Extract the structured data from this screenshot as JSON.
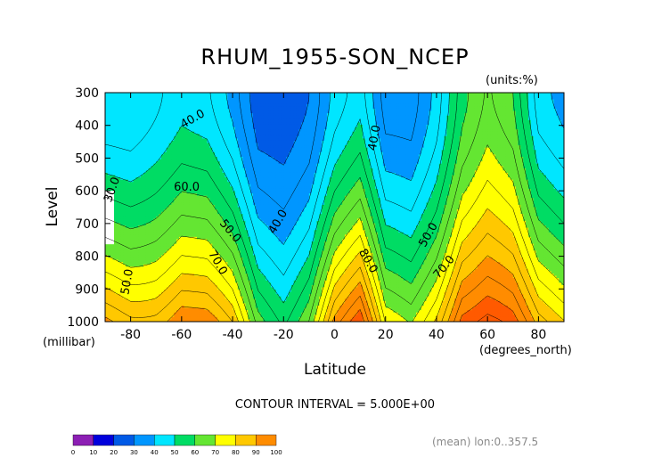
{
  "chart_data": {
    "type": "contour",
    "title": "RHUM_1955-SON_NCEP",
    "units_note": "(units:%)",
    "xlabel": "Latitude",
    "xunit_note": "(degrees_north)",
    "ylabel": "Level",
    "yunit_note": "(millibar)",
    "xlim": [
      -90,
      90
    ],
    "ylim": [
      1000,
      300
    ],
    "x_ticks": [
      -80,
      -60,
      -40,
      -20,
      0,
      20,
      40,
      60,
      80
    ],
    "y_ticks": [
      300,
      400,
      500,
      600,
      700,
      800,
      900,
      1000
    ],
    "contour_interval_text": "CONTOUR INTERVAL = 5.000E+00",
    "mean_note": "(mean) lon:0..357.5",
    "levels": [
      0,
      10,
      20,
      30,
      40,
      50,
      60,
      70,
      80,
      90,
      100
    ],
    "colors": [
      "#8c1fb4",
      "#0000dc",
      "#005ae6",
      "#0096ff",
      "#00e6ff",
      "#00dc64",
      "#64e632",
      "#ffff00",
      "#ffc800",
      "#ff8c00",
      "#ff5a00",
      "#ff0000"
    ],
    "field_model": {
      "base": [
        [
          -90,
          30,
          50
        ],
        [
          -80,
          30,
          48
        ],
        [
          -70,
          34,
          46
        ],
        [
          -60,
          38,
          48
        ],
        [
          -50,
          36,
          46
        ],
        [
          -40,
          28,
          44
        ],
        [
          -30,
          16,
          36
        ],
        [
          -20,
          16,
          30
        ],
        [
          -10,
          20,
          38
        ],
        [
          0,
          32,
          50
        ],
        [
          10,
          38,
          54
        ],
        [
          20,
          22,
          40
        ],
        [
          30,
          22,
          38
        ],
        [
          40,
          32,
          42
        ],
        [
          50,
          48,
          46
        ],
        [
          60,
          56,
          40
        ],
        [
          70,
          50,
          40
        ],
        [
          80,
          32,
          44
        ],
        [
          90,
          28,
          44
        ]
      ],
      "description_cols": [
        "latitude",
        "value_at_300mb",
        "gain_to_1000mb"
      ]
    },
    "contour_labels": [
      {
        "text": "40.0",
        "lat": -55,
        "lev": 390,
        "rot": -30
      },
      {
        "text": "30.0",
        "lat": -86,
        "lev": 600,
        "rot": -70
      },
      {
        "text": "60.0",
        "lat": -58,
        "lev": 600,
        "rot": 0
      },
      {
        "text": "50.0",
        "lat": -42,
        "lev": 730,
        "rot": 50
      },
      {
        "text": "40.0",
        "lat": -21,
        "lev": 700,
        "rot": -60
      },
      {
        "text": "70.0",
        "lat": -47,
        "lev": 825,
        "rot": 60
      },
      {
        "text": "50.0",
        "lat": -80,
        "lev": 880,
        "rot": -80
      },
      {
        "text": "40.0",
        "lat": 17,
        "lev": 440,
        "rot": -80
      },
      {
        "text": "80.0",
        "lat": 12,
        "lev": 820,
        "rot": 60
      },
      {
        "text": "50.0",
        "lat": 38,
        "lev": 740,
        "rot": -60
      },
      {
        "text": "70.0",
        "lat": 44,
        "lev": 840,
        "rot": -50
      }
    ]
  }
}
